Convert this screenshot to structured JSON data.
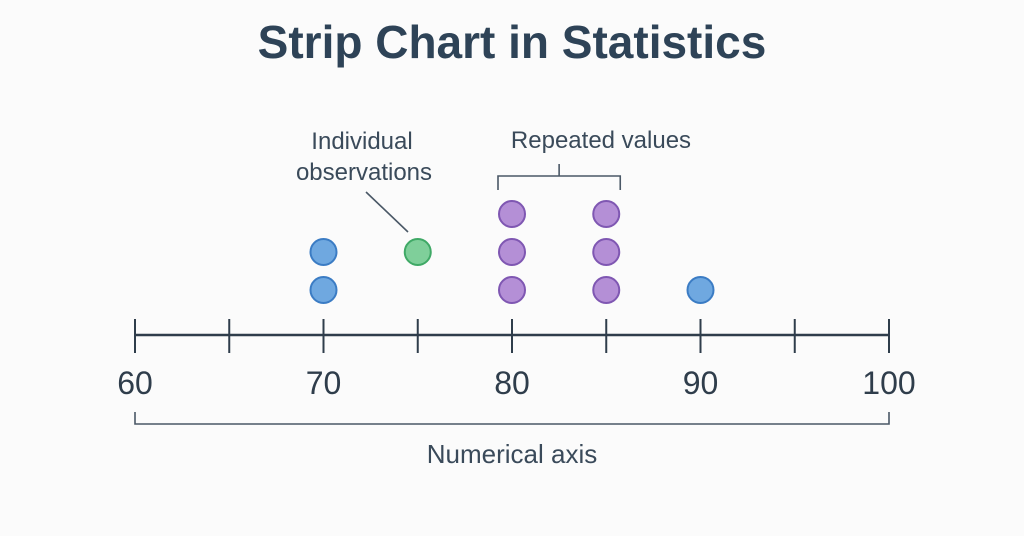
{
  "chart_data": {
    "type": "scatter",
    "title": "Strip Chart in Statistics",
    "xlabel": "Numerical axis",
    "xlim": [
      60,
      100
    ],
    "major_ticks": [
      60,
      70,
      80,
      90,
      100
    ],
    "minor_ticks": [
      65,
      75,
      85,
      95
    ],
    "points": [
      {
        "x": 70,
        "stack": 1,
        "color": "#6fa8e0"
      },
      {
        "x": 70,
        "stack": 2,
        "color": "#6fa8e0"
      },
      {
        "x": 75,
        "stack": 2,
        "color": "#7fcf9a"
      },
      {
        "x": 80,
        "stack": 1,
        "color": "#b48fd6"
      },
      {
        "x": 80,
        "stack": 2,
        "color": "#b48fd6"
      },
      {
        "x": 80,
        "stack": 3,
        "color": "#b48fd6"
      },
      {
        "x": 85,
        "stack": 1,
        "color": "#b48fd6"
      },
      {
        "x": 85,
        "stack": 2,
        "color": "#b48fd6"
      },
      {
        "x": 85,
        "stack": 3,
        "color": "#b48fd6"
      },
      {
        "x": 90,
        "stack": 1,
        "color": "#6fa8e0"
      }
    ],
    "annotations": {
      "individual": {
        "line1": "Individual",
        "line2": "observations",
        "target_x": 75
      },
      "repeated": {
        "label": "Repeated values",
        "x_from": 80,
        "x_to": 85
      }
    },
    "colors": {
      "blue_fill": "#6fa8e0",
      "blue_stroke": "#3b7cc4",
      "green_fill": "#7fcf9a",
      "green_stroke": "#3fa966",
      "purple_fill": "#b48fd6",
      "purple_stroke": "#7f57b2"
    }
  }
}
